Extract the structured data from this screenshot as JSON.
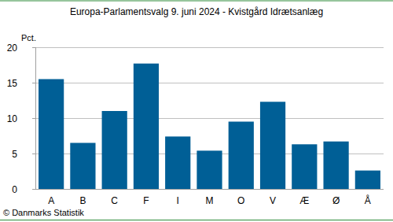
{
  "chart_data": {
    "type": "bar",
    "title": "Europa-Parlamentsvalg 9. juni 2024 - Kvistgård Idrætsanlæg",
    "y_label": "Pct.",
    "source": "© Danmarks Statistik",
    "categories": [
      "A",
      "B",
      "C",
      "F",
      "I",
      "M",
      "O",
      "V",
      "Æ",
      "Ø",
      "Å"
    ],
    "values": [
      15.5,
      6.5,
      11.0,
      17.7,
      7.4,
      5.4,
      9.5,
      12.3,
      6.3,
      6.7,
      2.6
    ],
    "color": "#005f96",
    "ylim": [
      0,
      20
    ],
    "yticks": [
      0,
      5,
      10,
      15,
      20
    ],
    "grid": true
  }
}
